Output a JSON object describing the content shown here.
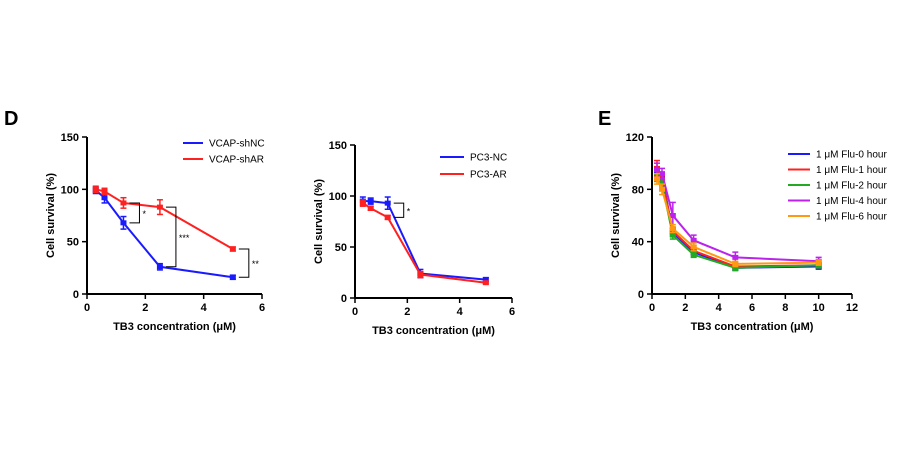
{
  "panels": [
    "D",
    "E"
  ],
  "chart_data": [
    {
      "type": "line",
      "xlabel": "TB3 concentration (μM)",
      "ylabel": "Cell survival (%)",
      "xlim": [
        0,
        6
      ],
      "ylim": [
        0,
        150
      ],
      "xticks": [
        0,
        2,
        4,
        6
      ],
      "yticks": [
        0,
        50,
        100,
        150
      ],
      "legend": "top-right",
      "series": [
        {
          "name": "VCAP-shNC",
          "color": "#1a1aff",
          "x": [
            0.3,
            0.6,
            1.25,
            2.5,
            5
          ],
          "y": [
            99,
            92,
            68,
            26,
            16
          ],
          "err": [
            3,
            5,
            6,
            3,
            2
          ]
        },
        {
          "name": "VCAP-shAR",
          "color": "#ff2020",
          "x": [
            0.3,
            0.6,
            1.25,
            2.5,
            5
          ],
          "y": [
            100,
            98,
            87,
            83,
            43
          ],
          "err": [
            3,
            3,
            5,
            7,
            2
          ]
        }
      ],
      "annotations": [
        {
          "text": "*",
          "x_from": 1.25,
          "y_from": 68,
          "y_to": 87
        },
        {
          "text": "***",
          "x_from": 2.5,
          "y_from": 26,
          "y_to": 83
        },
        {
          "text": "**",
          "x_from": 5,
          "y_from": 16,
          "y_to": 43
        }
      ]
    },
    {
      "type": "line",
      "xlabel": "TB3 concentration (μM)",
      "ylabel": "Cell survival (%)",
      "xlim": [
        0,
        6
      ],
      "ylim": [
        0,
        150
      ],
      "xticks": [
        0,
        2,
        4,
        6
      ],
      "yticks": [
        0,
        50,
        100,
        150
      ],
      "legend": "top-right",
      "series": [
        {
          "name": "PC3-NC",
          "color": "#1a1aff",
          "x": [
            0.3,
            0.6,
            1.25,
            2.5,
            5
          ],
          "y": [
            95,
            95,
            93,
            24,
            18
          ],
          "err": [
            4,
            3,
            6,
            4,
            2
          ]
        },
        {
          "name": "PC3-AR",
          "color": "#ff2020",
          "x": [
            0.3,
            0.6,
            1.25,
            2.5,
            5
          ],
          "y": [
            93,
            88,
            79,
            23,
            15
          ],
          "err": [
            3,
            2,
            2,
            3,
            1
          ]
        }
      ],
      "annotations": [
        {
          "text": "*",
          "x_from": 1.25,
          "y_from": 79,
          "y_to": 93
        }
      ]
    },
    {
      "type": "line",
      "xlabel": "TB3 concentration (μM)",
      "ylabel": "Cell survival (%)",
      "xlim": [
        0,
        12
      ],
      "ylim": [
        0,
        120
      ],
      "xticks": [
        0,
        2,
        4,
        6,
        8,
        10,
        12
      ],
      "yticks": [
        0,
        40,
        80,
        120
      ],
      "legend": "top-right",
      "series": [
        {
          "name": "1 μM Flu-0 hour",
          "color": "#1a1aff",
          "x": [
            0.3,
            0.6,
            1.25,
            2.5,
            5,
            10
          ],
          "y": [
            92,
            90,
            47,
            32,
            20,
            21
          ],
          "err": [
            4,
            3,
            3,
            2,
            2,
            2
          ]
        },
        {
          "name": "1 μM Flu-1 hour",
          "color": "#ff2020",
          "x": [
            0.3,
            0.6,
            1.25,
            2.5,
            5,
            10
          ],
          "y": [
            96,
            88,
            48,
            33,
            21,
            22
          ],
          "err": [
            6,
            4,
            3,
            2,
            2,
            2
          ]
        },
        {
          "name": "1 μM Flu-2 hour",
          "color": "#22aa22",
          "x": [
            0.3,
            0.6,
            1.25,
            2.5,
            5,
            10
          ],
          "y": [
            90,
            84,
            45,
            30,
            20,
            22
          ],
          "err": [
            4,
            4,
            3,
            2,
            2,
            2
          ]
        },
        {
          "name": "1 μM Flu-4 hour",
          "color": "#bb22ee",
          "x": [
            0.3,
            0.6,
            1.25,
            2.5,
            5,
            10
          ],
          "y": [
            95,
            92,
            60,
            41,
            28,
            25
          ],
          "err": [
            5,
            4,
            10,
            4,
            4,
            3
          ]
        },
        {
          "name": "1 μM Flu-6 hour",
          "color": "#ff9911",
          "x": [
            0.3,
            0.6,
            1.25,
            2.5,
            5,
            10
          ],
          "y": [
            88,
            80,
            50,
            36,
            23,
            24
          ],
          "err": [
            4,
            4,
            3,
            3,
            2,
            2
          ]
        }
      ],
      "annotations": []
    }
  ]
}
